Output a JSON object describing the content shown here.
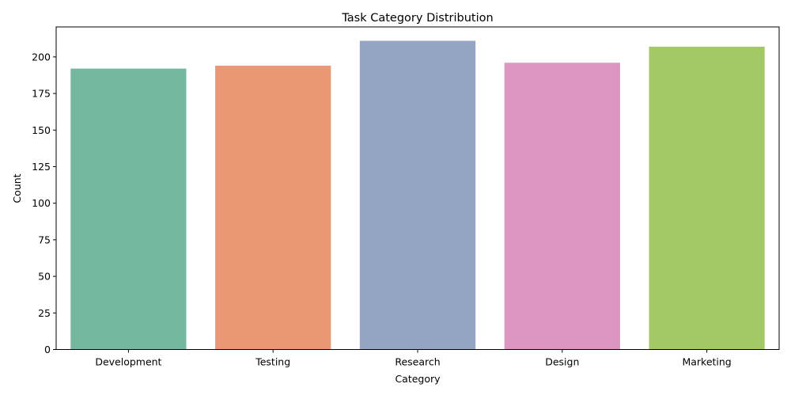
{
  "chart_data": {
    "type": "bar",
    "title": "Task Category Distribution",
    "xlabel": "Category",
    "ylabel": "Count",
    "categories": [
      "Development",
      "Testing",
      "Research",
      "Design",
      "Marketing"
    ],
    "values": [
      192,
      194,
      211,
      196,
      207
    ],
    "colors": [
      "#76b7a0",
      "#e99775",
      "#94a4c3",
      "#dc95c0",
      "#a3c967"
    ],
    "ylim": [
      0,
      220.5
    ],
    "yticks": [
      0,
      25,
      50,
      75,
      100,
      125,
      150,
      175,
      200
    ],
    "grid": false,
    "legend": "none"
  }
}
